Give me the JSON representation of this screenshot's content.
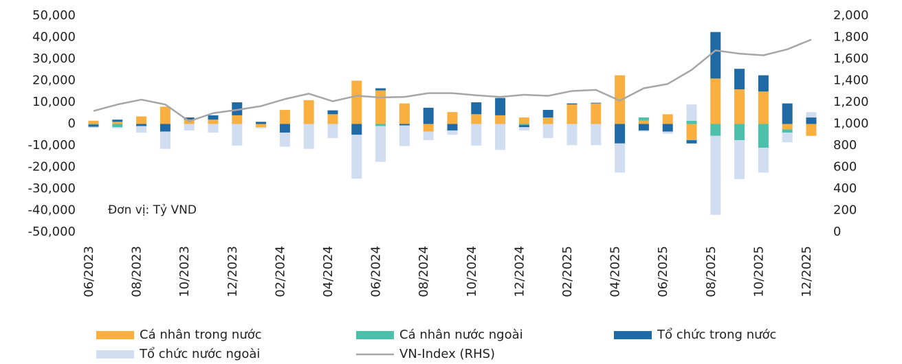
{
  "chart_data": {
    "type": "bar",
    "stacked": true,
    "annotation": "Đơn vị: Tỷ VND",
    "categories": [
      "06/2023",
      null,
      "08/2023",
      null,
      "10/2023",
      null,
      "12/2023",
      null,
      "02/2024",
      null,
      "04/2024",
      null,
      "06/2024",
      null,
      "08/2024",
      null,
      "10/2024",
      null,
      "12/2024",
      null,
      "02/2025",
      null,
      "04/2025",
      null,
      "06/2025",
      null,
      "08/2025",
      null,
      "10/2025",
      null,
      "12/2025"
    ],
    "series": [
      {
        "name": "Cá nhân trong nước",
        "color": "#f9b041",
        "values": [
          1500,
          1000,
          3500,
          8000,
          2000,
          2000,
          4000,
          -1500,
          6500,
          11000,
          4500,
          20000,
          15500,
          9500,
          -3500,
          5500,
          4500,
          4000,
          3000,
          3000,
          9000,
          9500,
          22500,
          1500,
          4500,
          -7500,
          21000,
          16000,
          15000,
          -2500,
          -5500
        ]
      },
      {
        "name": "Cá nhân nước ngoài",
        "color": "#4cc0aa",
        "values": [
          -300,
          -1500,
          0,
          0,
          0,
          0,
          0,
          0,
          0,
          0,
          0,
          0,
          -1000,
          0,
          0,
          0,
          0,
          0,
          -500,
          0,
          0,
          0,
          0,
          1500,
          0,
          1500,
          -5500,
          -7500,
          -11000,
          -1500,
          0
        ]
      },
      {
        "name": "Tổ chức trong nước",
        "color": "#1f6aa5",
        "values": [
          -1000,
          1000,
          -1000,
          -3500,
          1000,
          2000,
          6000,
          1000,
          -4000,
          0,
          1800,
          -5000,
          1000,
          -700,
          7500,
          -3000,
          5500,
          8000,
          -1000,
          3500,
          500,
          300,
          -9000,
          -3000,
          -3500,
          -1500,
          21500,
          9500,
          7500,
          9500,
          3000
        ]
      },
      {
        "name": "Tổ chức nước ngoài",
        "color": "#d1ddf1",
        "values": [
          -500,
          -500,
          -3000,
          -8000,
          -3000,
          -4000,
          -10000,
          -500,
          -6500,
          -11500,
          -6500,
          -20300,
          -16500,
          -9500,
          -4000,
          -2000,
          -10000,
          -12000,
          -1500,
          -6500,
          -9800,
          -9800,
          -13500,
          -500,
          -1000,
          7500,
          -36500,
          -18000,
          -11500,
          -4500,
          2500
        ]
      },
      {
        "name": "VN-Index (RHS)",
        "type": "line",
        "axis": "y2",
        "color": "#a6a6a6",
        "values": [
          1120,
          1180,
          1225,
          1180,
          1025,
          1100,
          1130,
          1165,
          1230,
          1280,
          1210,
          1260,
          1245,
          1250,
          1285,
          1285,
          1265,
          1250,
          1270,
          1260,
          1305,
          1315,
          1215,
          1330,
          1370,
          1500,
          1680,
          1650,
          1635,
          1690,
          1780
        ]
      }
    ],
    "ylim": [
      -50000,
      50000
    ],
    "yticks": [
      {
        "value": -50000,
        "label": "-50,000"
      },
      {
        "value": -40000,
        "label": "-40,000"
      },
      {
        "value": -30000,
        "label": "-30,000"
      },
      {
        "value": -20000,
        "label": "-20,000"
      },
      {
        "value": -10000,
        "label": "-10,000"
      },
      0,
      {
        "value": 10000,
        "label": "10,000"
      },
      {
        "value": 20000,
        "label": "20,000"
      },
      {
        "value": 30000,
        "label": "30,000"
      },
      {
        "value": 40000,
        "label": "40,000"
      },
      {
        "value": 50000,
        "label": "50,000"
      }
    ],
    "y2lim": [
      0,
      2000
    ],
    "y2ticks": [
      0,
      200,
      400,
      600,
      800,
      {
        "value": 1000,
        "label": "1,000"
      },
      {
        "value": 1200,
        "label": "1,200"
      },
      {
        "value": 1400,
        "label": "1,400"
      },
      {
        "value": 1600,
        "label": "1,600"
      },
      {
        "value": 1800,
        "label": "1,800"
      },
      {
        "value": 2000,
        "label": "2,000"
      }
    ],
    "grid": false,
    "legend": "bottom"
  }
}
